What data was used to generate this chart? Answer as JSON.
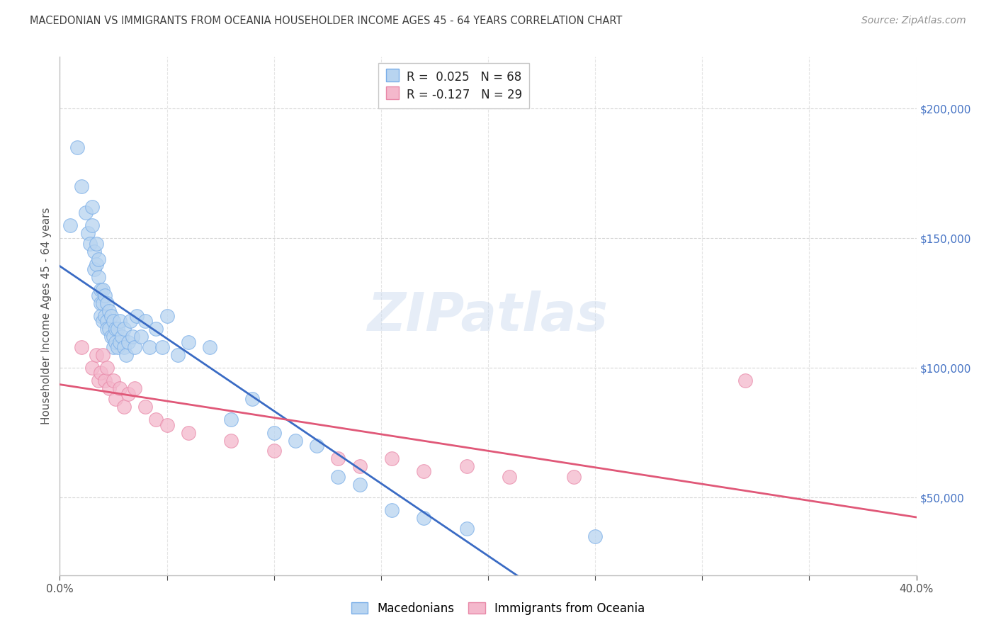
{
  "title": "MACEDONIAN VS IMMIGRANTS FROM OCEANIA HOUSEHOLDER INCOME AGES 45 - 64 YEARS CORRELATION CHART",
  "source": "Source: ZipAtlas.com",
  "ylabel": "Householder Income Ages 45 - 64 years",
  "xlim": [
    0.0,
    0.4
  ],
  "ylim": [
    20000,
    220000
  ],
  "yticks": [
    50000,
    100000,
    150000,
    200000
  ],
  "xticks": [
    0.0,
    0.05,
    0.1,
    0.15,
    0.2,
    0.25,
    0.3,
    0.35,
    0.4
  ],
  "blue_r": 0.025,
  "blue_n": 68,
  "pink_r": -0.127,
  "pink_n": 29,
  "blue_color": "#b8d4f0",
  "blue_edge": "#7aaee8",
  "pink_color": "#f4b8cc",
  "pink_edge": "#e888a8",
  "blue_line_color": "#3a6bc4",
  "blue_dash_color": "#7aaee8",
  "pink_line_color": "#e05878",
  "title_color": "#404040",
  "source_color": "#909090",
  "background_color": "#ffffff",
  "grid_color": "#cccccc",
  "blue_x": [
    0.005,
    0.008,
    0.01,
    0.012,
    0.013,
    0.014,
    0.015,
    0.015,
    0.016,
    0.016,
    0.017,
    0.017,
    0.018,
    0.018,
    0.018,
    0.019,
    0.019,
    0.019,
    0.02,
    0.02,
    0.02,
    0.021,
    0.021,
    0.022,
    0.022,
    0.022,
    0.023,
    0.023,
    0.024,
    0.024,
    0.025,
    0.025,
    0.025,
    0.026,
    0.026,
    0.027,
    0.027,
    0.028,
    0.028,
    0.029,
    0.03,
    0.03,
    0.031,
    0.032,
    0.033,
    0.034,
    0.035,
    0.036,
    0.038,
    0.04,
    0.042,
    0.045,
    0.048,
    0.05,
    0.055,
    0.06,
    0.07,
    0.08,
    0.09,
    0.1,
    0.11,
    0.12,
    0.13,
    0.14,
    0.155,
    0.17,
    0.19,
    0.25
  ],
  "blue_y": [
    155000,
    185000,
    170000,
    160000,
    152000,
    148000,
    162000,
    155000,
    145000,
    138000,
    148000,
    140000,
    142000,
    135000,
    128000,
    130000,
    125000,
    120000,
    130000,
    125000,
    118000,
    128000,
    120000,
    125000,
    118000,
    115000,
    122000,
    115000,
    120000,
    112000,
    118000,
    112000,
    108000,
    115000,
    110000,
    115000,
    108000,
    118000,
    110000,
    112000,
    108000,
    115000,
    105000,
    110000,
    118000,
    112000,
    108000,
    120000,
    112000,
    118000,
    108000,
    115000,
    108000,
    120000,
    105000,
    110000,
    108000,
    80000,
    88000,
    75000,
    72000,
    70000,
    58000,
    55000,
    45000,
    42000,
    38000,
    35000
  ],
  "pink_x": [
    0.01,
    0.015,
    0.017,
    0.018,
    0.019,
    0.02,
    0.021,
    0.022,
    0.023,
    0.025,
    0.026,
    0.028,
    0.03,
    0.032,
    0.035,
    0.04,
    0.045,
    0.05,
    0.06,
    0.08,
    0.1,
    0.13,
    0.14,
    0.155,
    0.17,
    0.19,
    0.21,
    0.24,
    0.32
  ],
  "pink_y": [
    108000,
    100000,
    105000,
    95000,
    98000,
    105000,
    95000,
    100000,
    92000,
    95000,
    88000,
    92000,
    85000,
    90000,
    92000,
    85000,
    80000,
    78000,
    75000,
    72000,
    68000,
    65000,
    62000,
    65000,
    60000,
    62000,
    58000,
    58000,
    95000
  ]
}
